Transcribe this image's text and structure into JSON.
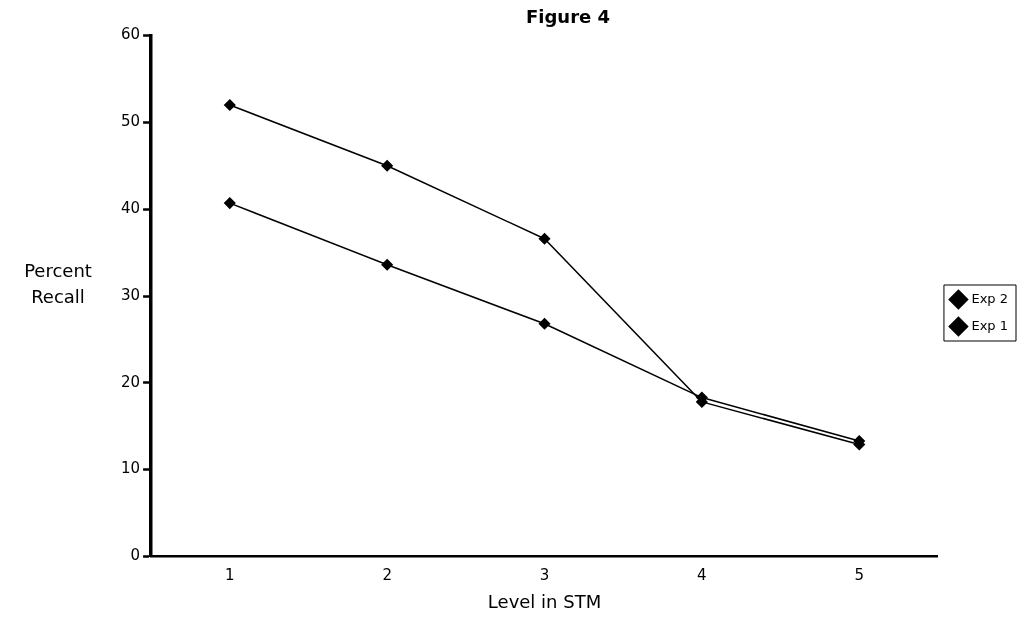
{
  "chart_data": {
    "type": "line",
    "title": "Figure 4",
    "xlabel": "Level in STM",
    "ylabel": "Percent Recall",
    "categories": [
      "1",
      "2",
      "3",
      "4",
      "5"
    ],
    "series": [
      {
        "name": "Exp 2",
        "color": "#000000",
        "values": [
          52,
          45,
          36.6,
          17.8,
          12.9
        ]
      },
      {
        "name": "Exp 1",
        "color": "#000000",
        "values": [
          40.7,
          33.6,
          26.8,
          18.3,
          13.3
        ]
      }
    ],
    "ylim": [
      0,
      60
    ],
    "yticks": [
      0,
      10,
      20,
      30,
      40,
      50,
      60
    ],
    "grid": false,
    "legend": "right",
    "marker": "diamond",
    "line_style": "solid"
  }
}
